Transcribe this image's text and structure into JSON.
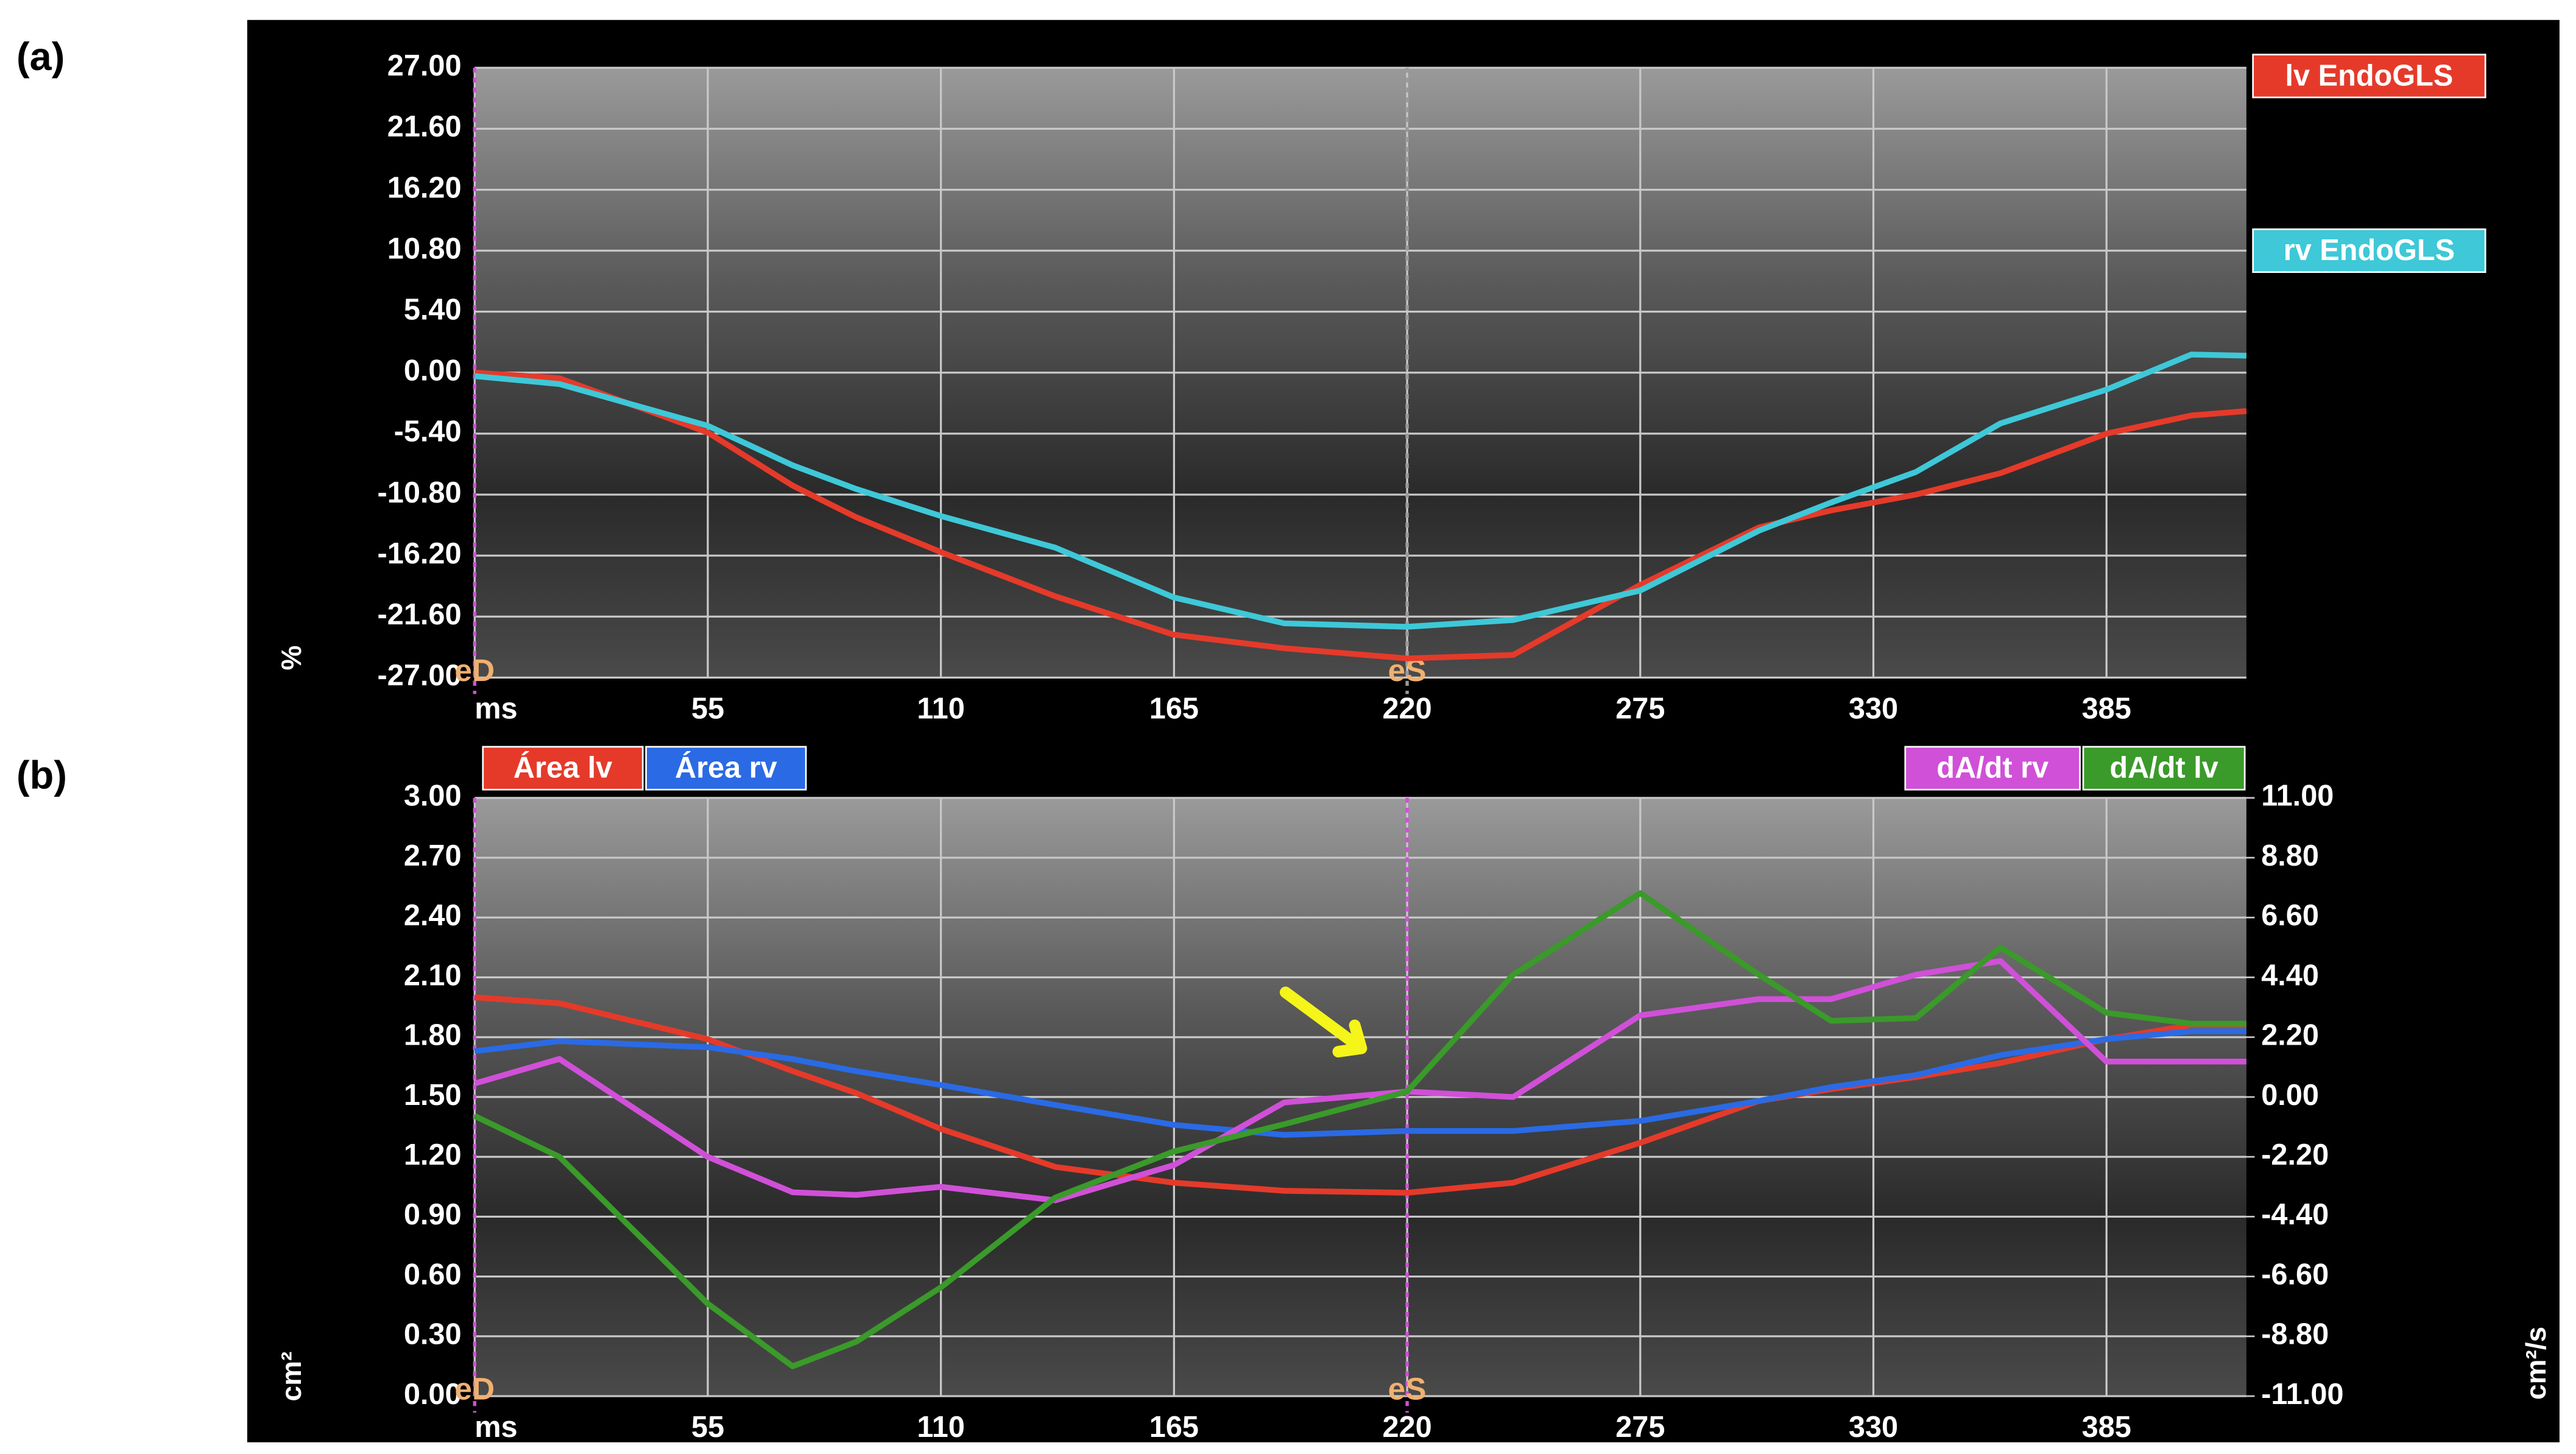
{
  "chart_data": [
    {
      "type": "line",
      "label": "(a)",
      "y_label": "%",
      "x": [
        0,
        20,
        55,
        75,
        90,
        110,
        137,
        165,
        191,
        220,
        245,
        275,
        303,
        320,
        340,
        360,
        385,
        405,
        418
      ],
      "xlim": [
        0,
        418
      ],
      "xticks": [
        {
          "value": 0,
          "label": "ms"
        },
        55,
        110,
        165,
        220,
        275,
        330,
        385
      ],
      "ylim": [
        -27,
        27
      ],
      "yticks": [
        {
          "value": -27,
          "label": "-27.00"
        },
        {
          "value": -21.6,
          "label": "-21.60"
        },
        {
          "value": -16.2,
          "label": "-16.20"
        },
        {
          "value": -10.8,
          "label": "-10.80"
        },
        {
          "value": -5.4,
          "label": "-5.40"
        },
        {
          "value": 0,
          "label": "0.00"
        },
        {
          "value": 5.4,
          "label": "5.40"
        },
        {
          "value": 10.8,
          "label": "10.80"
        },
        {
          "value": 16.2,
          "label": "16.20"
        },
        {
          "value": 21.6,
          "label": "21.60"
        },
        {
          "value": 27,
          "label": "27.00"
        }
      ],
      "grid": true,
      "markers": [
        {
          "label": "eD",
          "x": 0,
          "color": "#d050d8"
        },
        {
          "label": "eS",
          "x": 220,
          "color": "#9a9a9a"
        }
      ],
      "series": [
        {
          "name": "lv EndoGLS",
          "color": "#e53a2a",
          "values": [
            0,
            -0.5,
            -5.3,
            -10,
            -12.8,
            -15.9,
            -19.8,
            -23.2,
            -24.4,
            -25.3,
            -25.0,
            -18.8,
            -13.7,
            -12.2,
            -10.8,
            -8.9,
            -5.4,
            -3.8,
            -3.4
          ]
        },
        {
          "name": "rv EndoGLS",
          "color": "#3ec8d8",
          "values": [
            -0.3,
            -1.0,
            -4.7,
            -8.2,
            -10.3,
            -12.7,
            -15.5,
            -19.9,
            -22.2,
            -22.5,
            -21.9,
            -19.3,
            -14.0,
            -11.5,
            -8.8,
            -4.5,
            -1.5,
            1.6,
            1.5
          ]
        }
      ]
    },
    {
      "type": "line",
      "label": "(b)",
      "y_label": "cm²",
      "y2_label": "cm²/s",
      "x": [
        0,
        20,
        55,
        75,
        90,
        110,
        137,
        165,
        191,
        220,
        245,
        275,
        303,
        320,
        340,
        360,
        385,
        405,
        418
      ],
      "xlim": [
        0,
        418
      ],
      "xticks": [
        {
          "value": 0,
          "label": "ms"
        },
        55,
        110,
        165,
        220,
        275,
        330,
        385
      ],
      "ylim": [
        0,
        3
      ],
      "yticks": [
        {
          "value": 0,
          "label": "0.00"
        },
        {
          "value": 0.3,
          "label": "0.30"
        },
        {
          "value": 0.6,
          "label": "0.60"
        },
        {
          "value": 0.9,
          "label": "0.90"
        },
        {
          "value": 1.2,
          "label": "1.20"
        },
        {
          "value": 1.5,
          "label": "1.50"
        },
        {
          "value": 1.8,
          "label": "1.80"
        },
        {
          "value": 2.1,
          "label": "2.10"
        },
        {
          "value": 2.4,
          "label": "2.40"
        },
        {
          "value": 2.7,
          "label": "2.70"
        },
        {
          "value": 3,
          "label": "3.00"
        }
      ],
      "y2lim": [
        -11,
        11
      ],
      "y2ticks": [
        {
          "value": -11,
          "label": "-11.00"
        },
        {
          "value": -8.8,
          "label": "-8.80"
        },
        {
          "value": -6.6,
          "label": "-6.60"
        },
        {
          "value": -4.4,
          "label": "-4.40"
        },
        {
          "value": -2.2,
          "label": "-2.20"
        },
        {
          "value": 0,
          "label": "0.00"
        },
        {
          "value": 2.2,
          "label": "2.20"
        },
        {
          "value": 4.4,
          "label": "4.40"
        },
        {
          "value": 6.6,
          "label": "6.60"
        },
        {
          "value": 8.8,
          "label": "8.80"
        },
        {
          "value": 11,
          "label": "11.00"
        }
      ],
      "grid": true,
      "markers": [
        {
          "label": "eD",
          "x": 0,
          "color": "#d050d8"
        },
        {
          "label": "eS",
          "x": 220,
          "color": "#d050d8"
        }
      ],
      "series": [
        {
          "name": "Área lv",
          "color": "#e53a2a",
          "values": [
            2.0,
            1.97,
            1.79,
            1.63,
            1.52,
            1.34,
            1.15,
            1.07,
            1.03,
            1.02,
            1.07,
            1.27,
            1.48,
            1.54,
            1.6,
            1.67,
            1.79,
            1.86,
            1.86
          ]
        },
        {
          "name": "Área rv",
          "color": "#2a6ae5",
          "values": [
            1.73,
            1.78,
            1.75,
            1.69,
            1.63,
            1.56,
            1.46,
            1.36,
            1.31,
            1.33,
            1.33,
            1.38,
            1.48,
            1.55,
            1.61,
            1.71,
            1.79,
            1.83,
            1.83
          ]
        },
        {
          "name": "dA/dt rv",
          "color": "#d050d8",
          "axis": "y2",
          "values": [
            0.5,
            1.4,
            -2.2,
            -3.5,
            -3.6,
            -3.3,
            -3.8,
            -2.5,
            -0.2,
            0.2,
            0.0,
            3.0,
            3.6,
            3.6,
            4.5,
            5.0,
            1.3,
            1.3,
            1.3
          ]
        },
        {
          "name": "dA/dt lv",
          "color": "#3a9a2a",
          "axis": "y2",
          "values": [
            -0.7,
            -2.2,
            -7.6,
            -9.9,
            -9.0,
            -7.0,
            -3.7,
            -2.0,
            -1.0,
            0.2,
            4.5,
            7.5,
            4.5,
            2.8,
            2.9,
            5.5,
            3.1,
            2.7,
            2.7
          ]
        }
      ]
    }
  ]
}
